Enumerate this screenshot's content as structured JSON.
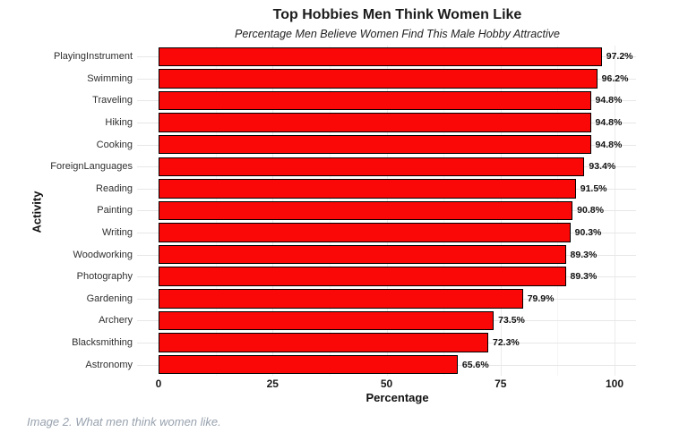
{
  "chart_data": {
    "type": "bar",
    "orientation": "horizontal",
    "title": "Top Hobbies Men Think Women Like",
    "subtitle": "Percentage Men Believe Women Find This Male Hobby Attractive",
    "xlabel": "Percentage",
    "ylabel": "Activity",
    "xlim": [
      0,
      104
    ],
    "xticks": [
      0,
      25,
      50,
      75,
      100
    ],
    "grid": "on",
    "bar_color": "#fa0808",
    "bar_border_color": "#000000",
    "categories": [
      "PlayingInstrument",
      "Swimming",
      "Traveling",
      "Hiking",
      "Cooking",
      "ForeignLanguages",
      "Reading",
      "Painting",
      "Writing",
      "Woodworking",
      "Photography",
      "Gardening",
      "Archery",
      "Blacksmithing",
      "Astronomy"
    ],
    "values": [
      97.2,
      96.2,
      94.8,
      94.8,
      94.8,
      93.4,
      91.5,
      90.8,
      90.3,
      89.3,
      89.3,
      79.9,
      73.5,
      72.3,
      65.6
    ],
    "value_labels": [
      "97.2%",
      "96.2%",
      "94.8%",
      "94.8%",
      "94.8%",
      "93.4%",
      "91.5%",
      "90.8%",
      "90.3%",
      "89.3%",
      "89.3%",
      "79.9%",
      "73.5%",
      "72.3%",
      "65.6%"
    ]
  },
  "caption": "Image 2. What men think women like."
}
